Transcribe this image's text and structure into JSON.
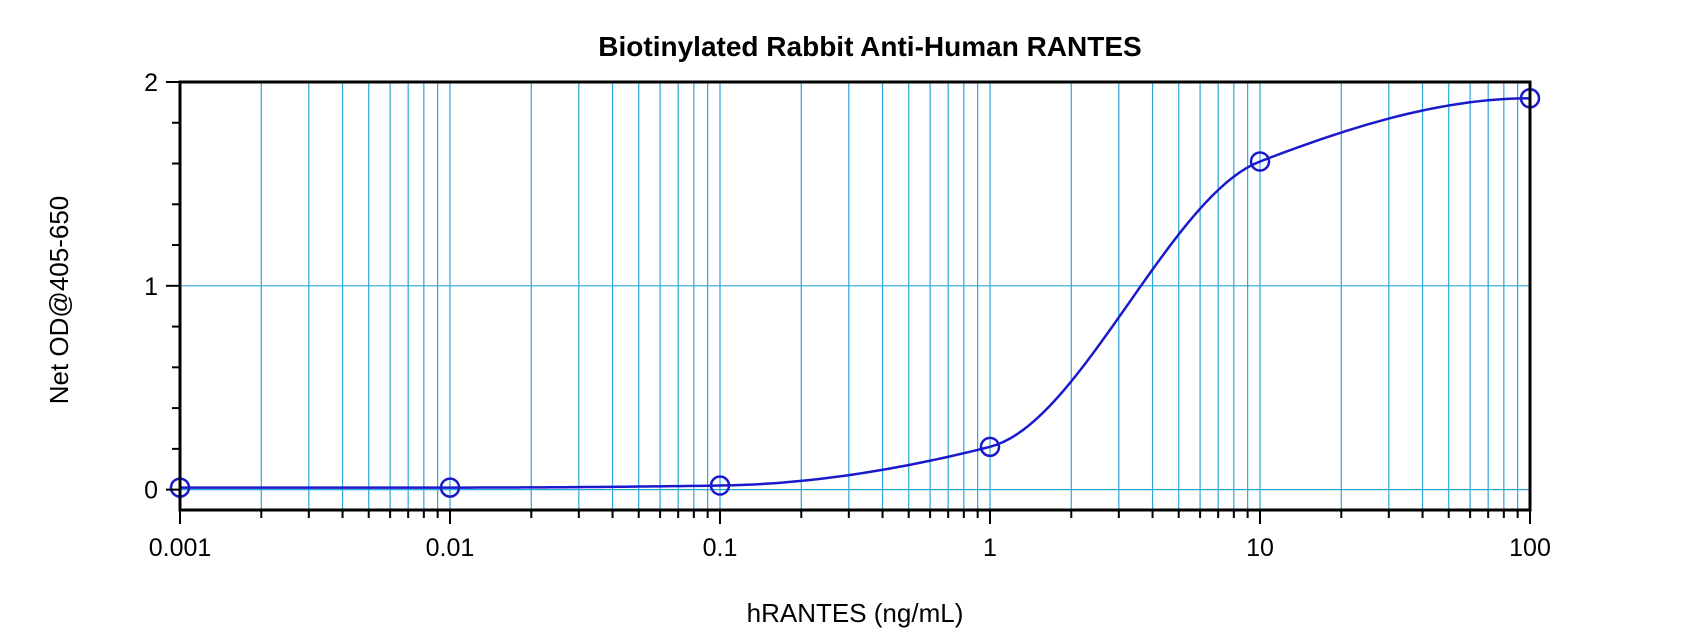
{
  "chart_data": {
    "type": "scatter",
    "title": "Biotinylated Rabbit Anti-Human RANTES",
    "xlabel": "hRANTES (ng/mL)",
    "ylabel": "Net OD@405-650",
    "x_scale": "log",
    "xlim": [
      0.001,
      100
    ],
    "ylim": [
      -0.1,
      2
    ],
    "x_ticks": [
      "0.001",
      "0.01",
      "0.1",
      "1",
      "10",
      "100"
    ],
    "y_ticks": [
      "0",
      "1",
      "2"
    ],
    "grid": true,
    "series": [
      {
        "points": [
          {
            "x": 0.001,
            "y": 0.01
          },
          {
            "x": 0.01,
            "y": 0.01
          },
          {
            "x": 0.1,
            "y": 0.02
          },
          {
            "x": 1,
            "y": 0.21
          },
          {
            "x": 10,
            "y": 1.61
          },
          {
            "x": 100,
            "y": 1.92
          }
        ],
        "fit_curve": true
      }
    ]
  },
  "colors": {
    "series": "#1a1acc",
    "grid": "#2aa7d8",
    "axis": "#000000"
  }
}
